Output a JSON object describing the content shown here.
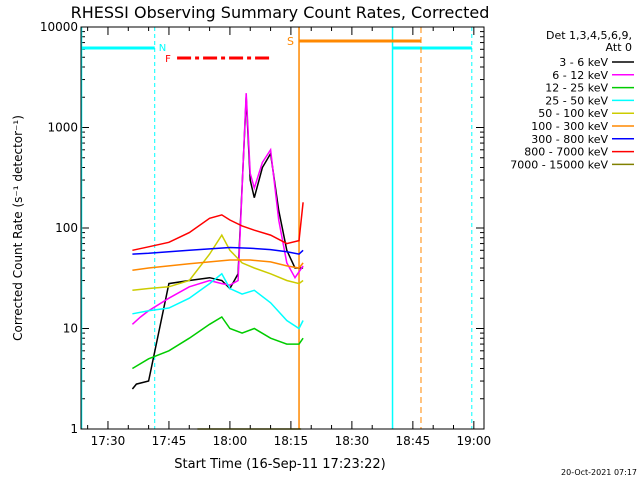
{
  "chart_data": {
    "type": "line",
    "title": "RHESSI Observing Summary Count Rates, Corrected",
    "xlabel": "Start Time (16-Sep-11 17:23:22)",
    "ylabel": "Corrected Count Rate (s⁻¹ detector⁻¹)",
    "x_ticks": [
      "17:30",
      "17:45",
      "18:00",
      "18:15",
      "18:30",
      "18:45",
      "19:00"
    ],
    "x_range": [
      "17:23:22",
      "19:02:30"
    ],
    "y_scale": "log",
    "y_ticks": [
      1,
      10,
      100,
      1000,
      10000
    ],
    "y_range": [
      1,
      10000
    ],
    "legend": {
      "placement": "right",
      "header": [
        "Det 1,3,4,5,6,9,",
        "Att 0"
      ]
    },
    "series": [
      {
        "name": "3 - 6 keV",
        "color": "#000000",
        "x": [
          "17:36",
          "17:37",
          "17:40",
          "17:45",
          "17:50",
          "17:55",
          "17:58",
          "18:00",
          "18:02",
          "18:04",
          "18:05",
          "18:06",
          "18:08",
          "18:10",
          "18:12",
          "18:14",
          "18:16",
          "18:18"
        ],
        "y": [
          2.5,
          2.8,
          3,
          28,
          30,
          32,
          30,
          25,
          35,
          2000,
          300,
          200,
          400,
          550,
          150,
          60,
          40,
          40
        ]
      },
      {
        "name": "6 - 12 keV",
        "color": "#ff00ff",
        "x": [
          "17:36",
          "17:38",
          "17:40",
          "17:45",
          "17:50",
          "17:55",
          "17:58",
          "18:00",
          "18:02",
          "18:04",
          "18:05",
          "18:06",
          "18:08",
          "18:10",
          "18:12",
          "18:14",
          "18:16",
          "18:18"
        ],
        "y": [
          11,
          13,
          15,
          20,
          26,
          30,
          28,
          27,
          30,
          2200,
          350,
          250,
          450,
          600,
          120,
          45,
          32,
          42
        ]
      },
      {
        "name": "12 - 25 keV",
        "color": "#00cc00",
        "x": [
          "17:36",
          "17:40",
          "17:45",
          "17:50",
          "17:55",
          "17:58",
          "18:00",
          "18:03",
          "18:06",
          "18:10",
          "18:14",
          "18:17",
          "18:18"
        ],
        "y": [
          4,
          5,
          6,
          8,
          11,
          13,
          10,
          9,
          10,
          8,
          7,
          7,
          8
        ]
      },
      {
        "name": "25 - 50 keV",
        "color": "#00ffff",
        "x": [
          "17:36",
          "17:40",
          "17:45",
          "17:50",
          "17:55",
          "17:58",
          "18:00",
          "18:03",
          "18:06",
          "18:10",
          "18:14",
          "18:17",
          "18:18"
        ],
        "y": [
          14,
          15,
          16,
          20,
          28,
          35,
          25,
          22,
          24,
          18,
          12,
          10,
          12
        ]
      },
      {
        "name": "50 - 100 keV",
        "color": "#cccc00",
        "x": [
          "17:36",
          "17:40",
          "17:45",
          "17:50",
          "17:55",
          "17:58",
          "18:00",
          "18:03",
          "18:06",
          "18:10",
          "18:14",
          "18:17",
          "18:18"
        ],
        "y": [
          24,
          25,
          26,
          30,
          55,
          85,
          60,
          45,
          40,
          35,
          30,
          28,
          30
        ]
      },
      {
        "name": "100 - 300 keV",
        "color": "#ff8800",
        "x": [
          "17:36",
          "17:40",
          "17:45",
          "17:50",
          "17:55",
          "18:00",
          "18:05",
          "18:10",
          "18:14",
          "18:17",
          "18:18"
        ],
        "y": [
          38,
          40,
          42,
          44,
          46,
          48,
          48,
          46,
          42,
          40,
          45
        ]
      },
      {
        "name": "300 - 800 keV",
        "color": "#0000ff",
        "x": [
          "17:36",
          "17:40",
          "17:45",
          "17:50",
          "17:55",
          "18:00",
          "18:05",
          "18:10",
          "18:14",
          "18:17",
          "18:18"
        ],
        "y": [
          55,
          56,
          58,
          60,
          62,
          64,
          63,
          61,
          58,
          55,
          60
        ]
      },
      {
        "name": "800 - 7000 keV",
        "color": "#ff0000",
        "x": [
          "17:36",
          "17:40",
          "17:45",
          "17:50",
          "17:55",
          "17:58",
          "18:00",
          "18:03",
          "18:06",
          "18:10",
          "18:14",
          "18:17",
          "18:18"
        ],
        "y": [
          60,
          65,
          72,
          90,
          125,
          135,
          120,
          105,
          95,
          85,
          70,
          75,
          180
        ]
      },
      {
        "name": "7000 - 15000 keV",
        "color": "#808000",
        "x": [
          "17:52",
          "17:56",
          "18:00",
          "18:04",
          "18:17",
          "18:17:30"
        ],
        "y": [
          1,
          1,
          1,
          1,
          1,
          1
        ]
      }
    ],
    "annotations": {
      "saa_start_label": "S",
      "night_label": "N",
      "flare_label": "F"
    }
  },
  "footer": {
    "date_stamp": "20-Oct-2021 07:17"
  },
  "colors": {
    "night": "#00ffff",
    "saa": "#ff8800",
    "flare": "#ff0000"
  }
}
